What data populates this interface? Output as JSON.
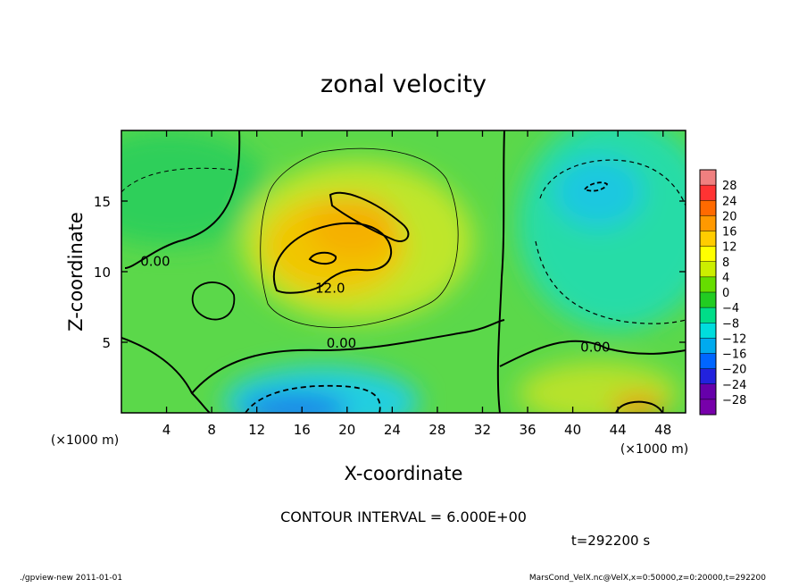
{
  "chart_data": {
    "type": "heatmap",
    "title": "zonal velocity",
    "xlabel": "X-coordinate",
    "ylabel": "Z-coordinate",
    "x_unit_label": "(×1000 m)",
    "y_unit_label": "(×1000 m)",
    "xlim": [
      0,
      50
    ],
    "ylim": [
      0,
      20
    ],
    "x_ticks": [
      4,
      8,
      12,
      16,
      20,
      24,
      28,
      32,
      36,
      40,
      44,
      48
    ],
    "y_ticks": [
      5,
      10,
      15
    ],
    "contour_interval_text": "CONTOUR INTERVAL = 6.000E+00",
    "time_text": "t=292200 s",
    "contour_labels": [
      {
        "text": "0.00",
        "x": 3.0,
        "y": 10.8
      },
      {
        "text": "12.0",
        "x": 18.5,
        "y": 8.9
      },
      {
        "text": "0.00",
        "x": 19.5,
        "y": 5.0
      },
      {
        "text": "0.00",
        "x": 42.0,
        "y": 4.7
      }
    ],
    "colorbar": {
      "levels": [
        "28",
        "24",
        "20",
        "16",
        "12",
        "8",
        "4",
        "0",
        "−4",
        "−8",
        "−12",
        "−16",
        "−20",
        "−24",
        "−28"
      ],
      "colors": [
        "#f08080",
        "#ff3333",
        "#ff6a00",
        "#ff9900",
        "#ffcc00",
        "#ffff00",
        "#ccee00",
        "#66dd00",
        "#22cc22",
        "#00dd88",
        "#00dddd",
        "#00aaee",
        "#0066ff",
        "#2222dd",
        "#6600aa",
        "#7700aa"
      ]
    },
    "field_regions": [
      {
        "name": "background",
        "value": 2
      },
      {
        "name": "positive-core",
        "value": 12
      },
      {
        "name": "upper-left-band",
        "value": 0
      },
      {
        "name": "right-negative",
        "value": -6
      },
      {
        "name": "bottom-negative",
        "value": -14
      },
      {
        "name": "bottom-right-positive",
        "value": 10
      }
    ]
  },
  "footer": {
    "left": "./gpview-new   2011-01-01",
    "right": "MarsCond_VelX.nc@VelX,x=0:50000,z=0:20000,t=292200"
  }
}
